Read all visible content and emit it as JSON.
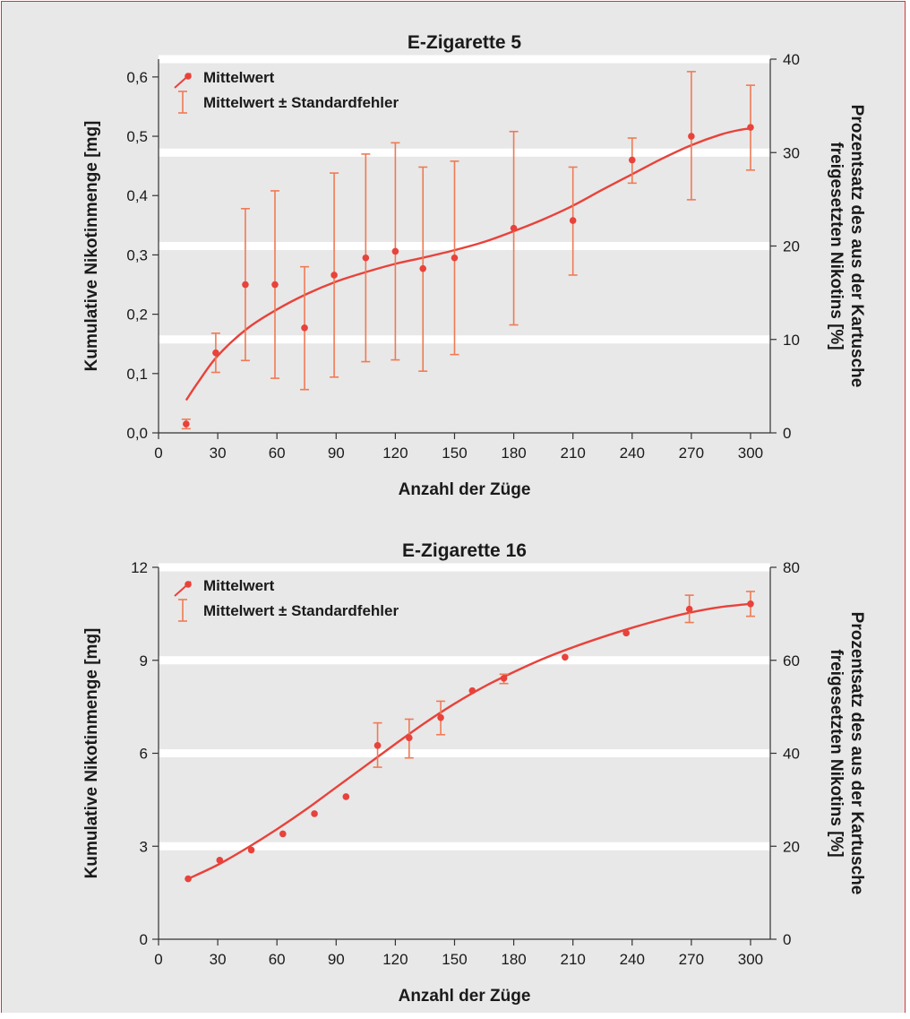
{
  "chart_data": [
    {
      "type": "scatter",
      "title": "E-Zigarette 5",
      "xlabel": "Anzahl der Züge",
      "ylabel": "Kumulative Nikotinmenge [mg]",
      "ylabel_right": "Prozentsatz des aus der Kartusche freigesetzten Nikotins [%]",
      "xlim": [
        0,
        310
      ],
      "ylim": [
        0,
        0.63
      ],
      "ylim_right": [
        0,
        40
      ],
      "x_ticks": [
        "0",
        "30",
        "60",
        "90",
        "120",
        "150",
        "180",
        "210",
        "240",
        "270",
        "300"
      ],
      "y_ticks": [
        "0,0",
        "0,1",
        "0,2",
        "0,3",
        "0,4",
        "0,5",
        "0,6"
      ],
      "y_right_ticks": [
        "0",
        "10",
        "20",
        "30",
        "40"
      ],
      "grid": "horizontal, at right-axis ticks",
      "legend_position": "top-left",
      "legend": [
        "Mittelwert",
        "Mittelwert ± Standardfehler"
      ],
      "series": [
        {
          "name": "Mittelwert",
          "color": "#e8423b",
          "x": [
            14,
            29,
            44,
            59,
            74,
            89,
            105,
            120,
            134,
            150,
            180,
            210,
            240,
            270,
            300
          ],
          "y": [
            0.015,
            0.135,
            0.25,
            0.25,
            0.177,
            0.266,
            0.295,
            0.306,
            0.277,
            0.295,
            0.345,
            0.358,
            0.46,
            0.5,
            0.515
          ],
          "err_low": [
            0.007,
            0.102,
            0.122,
            0.092,
            0.073,
            0.094,
            0.12,
            0.123,
            0.104,
            0.132,
            0.182,
            0.266,
            0.421,
            0.393,
            0.443
          ],
          "err_high": [
            0.023,
            0.168,
            0.378,
            0.408,
            0.28,
            0.438,
            0.47,
            0.489,
            0.448,
            0.458,
            0.508,
            0.448,
            0.497,
            0.609,
            0.586
          ]
        }
      ],
      "fit_curve": {
        "color": "#e8423b",
        "x": [
          14,
          20,
          30,
          45,
          60,
          75,
          90,
          105,
          120,
          135,
          150,
          165,
          180,
          195,
          210,
          225,
          240,
          255,
          270,
          285,
          295,
          300
        ],
        "y": [
          0.055,
          0.085,
          0.13,
          0.176,
          0.208,
          0.234,
          0.255,
          0.271,
          0.285,
          0.296,
          0.308,
          0.322,
          0.34,
          0.36,
          0.383,
          0.41,
          0.436,
          0.462,
          0.485,
          0.503,
          0.511,
          0.513
        ]
      }
    },
    {
      "type": "scatter",
      "title": "E-Zigarette 16",
      "xlabel": "Anzahl der Züge",
      "ylabel": "Kumulative Nikotinmenge [mg]",
      "ylabel_right": "Prozentsatz des aus der Kartusche freigesetzten Nikotins [%]",
      "xlim": [
        0,
        310
      ],
      "ylim": [
        0,
        12
      ],
      "ylim_right": [
        0,
        80
      ],
      "x_ticks": [
        "0",
        "30",
        "60",
        "90",
        "120",
        "150",
        "180",
        "210",
        "240",
        "270",
        "300"
      ],
      "y_ticks": [
        "0",
        "3",
        "6",
        "9",
        "12"
      ],
      "y_right_ticks": [
        "0",
        "20",
        "40",
        "60",
        "80"
      ],
      "grid": "horizontal, at right-axis ticks",
      "legend_position": "top-left",
      "legend": [
        "Mittelwert",
        "Mittelwert ± Standardfehler"
      ],
      "series": [
        {
          "name": "Mittelwert",
          "color": "#e8423b",
          "x": [
            15,
            31,
            47,
            63,
            79,
            95,
            111,
            127,
            143,
            159,
            175,
            206,
            237,
            269,
            300
          ],
          "y": [
            1.95,
            2.55,
            2.88,
            3.4,
            4.05,
            4.6,
            6.25,
            6.5,
            7.15,
            8.02,
            8.42,
            9.1,
            9.88,
            10.65,
            10.82
          ],
          "err_low": [
            1.95,
            2.55,
            2.88,
            3.4,
            4.05,
            4.6,
            5.55,
            5.85,
            6.6,
            8.02,
            8.25,
            9.1,
            9.88,
            10.22,
            10.42
          ],
          "err_high": [
            1.95,
            2.55,
            2.88,
            3.4,
            4.05,
            4.6,
            6.98,
            7.1,
            7.68,
            8.02,
            8.55,
            9.1,
            9.88,
            11.1,
            11.22
          ]
        }
      ],
      "fit_curve": {
        "color": "#e8423b",
        "x": [
          15,
          30,
          45,
          60,
          75,
          90,
          105,
          120,
          135,
          150,
          165,
          180,
          195,
          210,
          225,
          240,
          255,
          270,
          285,
          300
        ],
        "y": [
          1.95,
          2.4,
          2.95,
          3.55,
          4.2,
          4.9,
          5.6,
          6.3,
          6.98,
          7.6,
          8.15,
          8.62,
          9.05,
          9.42,
          9.75,
          10.05,
          10.32,
          10.55,
          10.72,
          10.82
        ]
      }
    }
  ]
}
